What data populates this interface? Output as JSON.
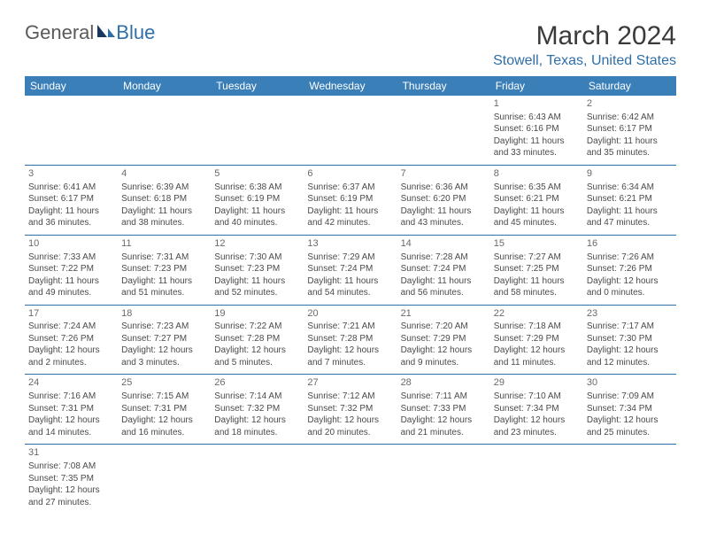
{
  "logo": {
    "text_general": "General",
    "text_blue": "Blue"
  },
  "title": "March 2024",
  "location": "Stowell, Texas, United States",
  "colors": {
    "header_bg": "#3b7fb8",
    "header_text": "#ffffff",
    "accent": "#2f6fa8",
    "body_text": "#4a4a4a",
    "daynum": "#6a6a6a",
    "title_text": "#3a3a3a",
    "logo_gray": "#5a5a5a",
    "background": "#ffffff"
  },
  "day_names": [
    "Sunday",
    "Monday",
    "Tuesday",
    "Wednesday",
    "Thursday",
    "Friday",
    "Saturday"
  ],
  "first_weekday": 5,
  "days": [
    {
      "n": 1,
      "sunrise": "6:43 AM",
      "sunset": "6:16 PM",
      "daylight": "11 hours and 33 minutes."
    },
    {
      "n": 2,
      "sunrise": "6:42 AM",
      "sunset": "6:17 PM",
      "daylight": "11 hours and 35 minutes."
    },
    {
      "n": 3,
      "sunrise": "6:41 AM",
      "sunset": "6:17 PM",
      "daylight": "11 hours and 36 minutes."
    },
    {
      "n": 4,
      "sunrise": "6:39 AM",
      "sunset": "6:18 PM",
      "daylight": "11 hours and 38 minutes."
    },
    {
      "n": 5,
      "sunrise": "6:38 AM",
      "sunset": "6:19 PM",
      "daylight": "11 hours and 40 minutes."
    },
    {
      "n": 6,
      "sunrise": "6:37 AM",
      "sunset": "6:19 PM",
      "daylight": "11 hours and 42 minutes."
    },
    {
      "n": 7,
      "sunrise": "6:36 AM",
      "sunset": "6:20 PM",
      "daylight": "11 hours and 43 minutes."
    },
    {
      "n": 8,
      "sunrise": "6:35 AM",
      "sunset": "6:21 PM",
      "daylight": "11 hours and 45 minutes."
    },
    {
      "n": 9,
      "sunrise": "6:34 AM",
      "sunset": "6:21 PM",
      "daylight": "11 hours and 47 minutes."
    },
    {
      "n": 10,
      "sunrise": "7:33 AM",
      "sunset": "7:22 PM",
      "daylight": "11 hours and 49 minutes."
    },
    {
      "n": 11,
      "sunrise": "7:31 AM",
      "sunset": "7:23 PM",
      "daylight": "11 hours and 51 minutes."
    },
    {
      "n": 12,
      "sunrise": "7:30 AM",
      "sunset": "7:23 PM",
      "daylight": "11 hours and 52 minutes."
    },
    {
      "n": 13,
      "sunrise": "7:29 AM",
      "sunset": "7:24 PM",
      "daylight": "11 hours and 54 minutes."
    },
    {
      "n": 14,
      "sunrise": "7:28 AM",
      "sunset": "7:24 PM",
      "daylight": "11 hours and 56 minutes."
    },
    {
      "n": 15,
      "sunrise": "7:27 AM",
      "sunset": "7:25 PM",
      "daylight": "11 hours and 58 minutes."
    },
    {
      "n": 16,
      "sunrise": "7:26 AM",
      "sunset": "7:26 PM",
      "daylight": "12 hours and 0 minutes."
    },
    {
      "n": 17,
      "sunrise": "7:24 AM",
      "sunset": "7:26 PM",
      "daylight": "12 hours and 2 minutes."
    },
    {
      "n": 18,
      "sunrise": "7:23 AM",
      "sunset": "7:27 PM",
      "daylight": "12 hours and 3 minutes."
    },
    {
      "n": 19,
      "sunrise": "7:22 AM",
      "sunset": "7:28 PM",
      "daylight": "12 hours and 5 minutes."
    },
    {
      "n": 20,
      "sunrise": "7:21 AM",
      "sunset": "7:28 PM",
      "daylight": "12 hours and 7 minutes."
    },
    {
      "n": 21,
      "sunrise": "7:20 AM",
      "sunset": "7:29 PM",
      "daylight": "12 hours and 9 minutes."
    },
    {
      "n": 22,
      "sunrise": "7:18 AM",
      "sunset": "7:29 PM",
      "daylight": "12 hours and 11 minutes."
    },
    {
      "n": 23,
      "sunrise": "7:17 AM",
      "sunset": "7:30 PM",
      "daylight": "12 hours and 12 minutes."
    },
    {
      "n": 24,
      "sunrise": "7:16 AM",
      "sunset": "7:31 PM",
      "daylight": "12 hours and 14 minutes."
    },
    {
      "n": 25,
      "sunrise": "7:15 AM",
      "sunset": "7:31 PM",
      "daylight": "12 hours and 16 minutes."
    },
    {
      "n": 26,
      "sunrise": "7:14 AM",
      "sunset": "7:32 PM",
      "daylight": "12 hours and 18 minutes."
    },
    {
      "n": 27,
      "sunrise": "7:12 AM",
      "sunset": "7:32 PM",
      "daylight": "12 hours and 20 minutes."
    },
    {
      "n": 28,
      "sunrise": "7:11 AM",
      "sunset": "7:33 PM",
      "daylight": "12 hours and 21 minutes."
    },
    {
      "n": 29,
      "sunrise": "7:10 AM",
      "sunset": "7:34 PM",
      "daylight": "12 hours and 23 minutes."
    },
    {
      "n": 30,
      "sunrise": "7:09 AM",
      "sunset": "7:34 PM",
      "daylight": "12 hours and 25 minutes."
    },
    {
      "n": 31,
      "sunrise": "7:08 AM",
      "sunset": "7:35 PM",
      "daylight": "12 hours and 27 minutes."
    }
  ],
  "labels": {
    "sunrise": "Sunrise: ",
    "sunset": "Sunset: ",
    "daylight": "Daylight: "
  }
}
